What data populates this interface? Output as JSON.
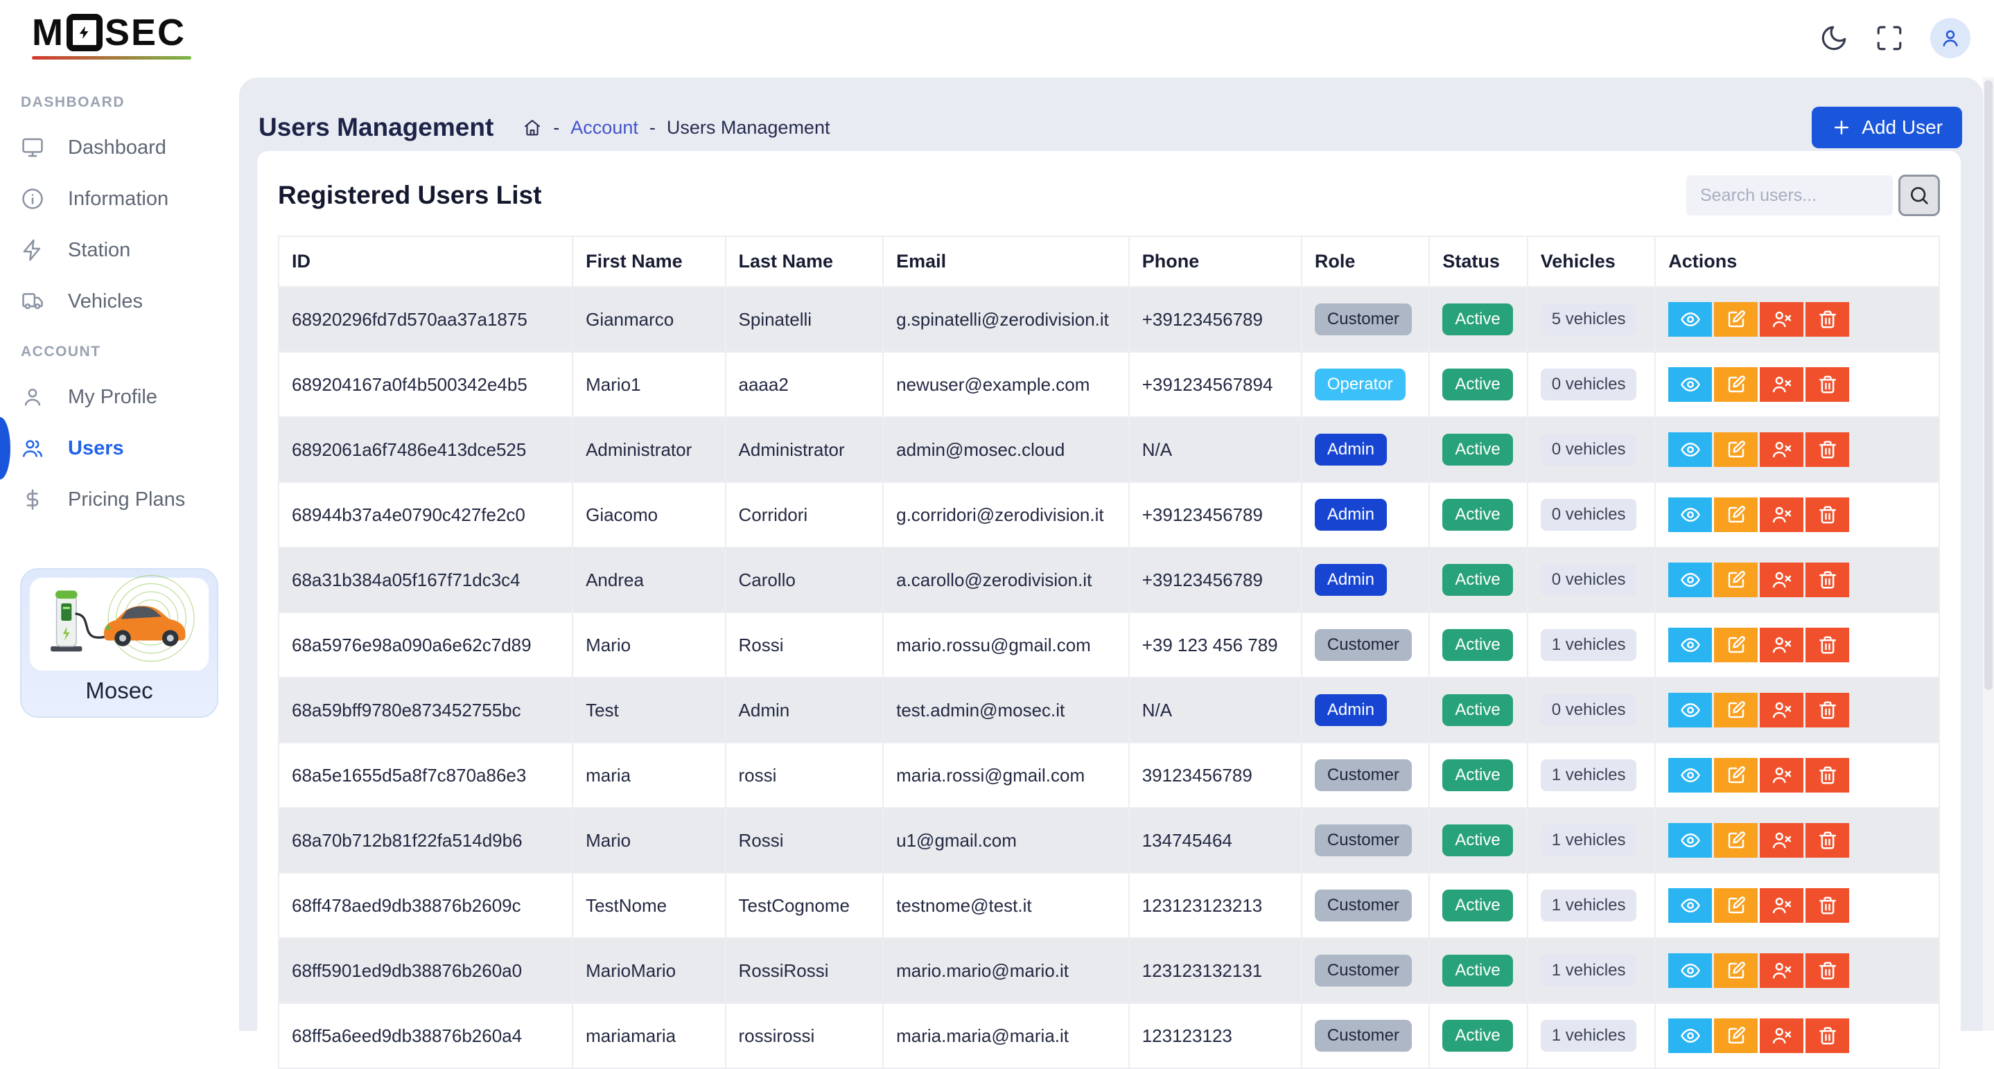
{
  "brand": {
    "logo_text_left": "M",
    "logo_text_right": "SEC",
    "bottom_card_label": "Mosec"
  },
  "topbar": {
    "buttons": [
      {
        "name": "dark-mode-toggle",
        "icon": "moon-icon"
      },
      {
        "name": "fullscreen-toggle",
        "icon": "maximize-icon"
      },
      {
        "name": "user-menu",
        "icon": "avatar-icon"
      }
    ]
  },
  "sidebar": {
    "sections": [
      {
        "label": "DASHBOARD",
        "items": [
          {
            "label": "Dashboard",
            "icon": "monitor-icon",
            "active": false
          },
          {
            "label": "Information",
            "icon": "info-icon",
            "active": false
          },
          {
            "label": "Station",
            "icon": "zap-icon",
            "active": false
          },
          {
            "label": "Vehicles",
            "icon": "truck-icon",
            "active": false
          }
        ]
      },
      {
        "label": "ACCOUNT",
        "items": [
          {
            "label": "My Profile",
            "icon": "user-icon",
            "active": false
          },
          {
            "label": "Users",
            "icon": "users-icon",
            "active": true
          },
          {
            "label": "Pricing Plans",
            "icon": "dollar-icon",
            "active": false
          }
        ]
      }
    ]
  },
  "page": {
    "title": "Users Management",
    "breadcrumb": {
      "separator": "-",
      "link": "Account",
      "current": "Users Management"
    },
    "add_user_label": "Add User"
  },
  "card": {
    "title": "Registered Users List",
    "search": {
      "placeholder": "Search users...",
      "value": ""
    }
  },
  "table": {
    "headers": [
      "ID",
      "First Name",
      "Last Name",
      "Email",
      "Phone",
      "Role",
      "Status",
      "Vehicles",
      "Actions"
    ],
    "row_actions": [
      {
        "name": "view",
        "icon": "eye-icon"
      },
      {
        "name": "edit",
        "icon": "edit-icon"
      },
      {
        "name": "remove-user",
        "icon": "user-x-icon"
      },
      {
        "name": "delete",
        "icon": "trash-icon"
      }
    ],
    "rows": [
      {
        "id": "68920296fd7d570aa37a1875",
        "first_name": "Gianmarco",
        "last_name": "Spinatelli",
        "email": "g.spinatelli@zerodivision.it",
        "phone": "+39123456789",
        "role": "Customer",
        "status": "Active",
        "vehicles": "5 vehicles"
      },
      {
        "id": "689204167a0f4b500342e4b5",
        "first_name": "Mario1",
        "last_name": "aaaa2",
        "email": "newuser@example.com",
        "phone": "+391234567894",
        "role": "Operator",
        "status": "Active",
        "vehicles": "0 vehicles"
      },
      {
        "id": "6892061a6f7486e413dce525",
        "first_name": "Administrator",
        "last_name": "Administrator",
        "email": "admin@mosec.cloud",
        "phone": "N/A",
        "role": "Admin",
        "status": "Active",
        "vehicles": "0 vehicles"
      },
      {
        "id": "68944b37a4e0790c427fe2c0",
        "first_name": "Giacomo",
        "last_name": "Corridori",
        "email": "g.corridori@zerodivision.it",
        "phone": "+39123456789",
        "role": "Admin",
        "status": "Active",
        "vehicles": "0 vehicles"
      },
      {
        "id": "68a31b384a05f167f71dc3c4",
        "first_name": "Andrea",
        "last_name": "Carollo",
        "email": "a.carollo@zerodivision.it",
        "phone": "+39123456789",
        "role": "Admin",
        "status": "Active",
        "vehicles": "0 vehicles"
      },
      {
        "id": "68a5976e98a090a6e62c7d89",
        "first_name": "Mario",
        "last_name": "Rossi",
        "email": "mario.rossu@gmail.com",
        "phone": "+39 123 456 789",
        "role": "Customer",
        "status": "Active",
        "vehicles": "1 vehicles"
      },
      {
        "id": "68a59bff9780e873452755bc",
        "first_name": "Test",
        "last_name": "Admin",
        "email": "test.admin@mosec.it",
        "phone": "N/A",
        "role": "Admin",
        "status": "Active",
        "vehicles": "0 vehicles"
      },
      {
        "id": "68a5e1655d5a8f7c870a86e3",
        "first_name": "maria",
        "last_name": "rossi",
        "email": "maria.rossi@gmail.com",
        "phone": "39123456789",
        "role": "Customer",
        "status": "Active",
        "vehicles": "1 vehicles"
      },
      {
        "id": "68a70b712b81f22fa514d9b6",
        "first_name": "Mario",
        "last_name": "Rossi",
        "email": "u1@gmail.com",
        "phone": "134745464",
        "role": "Customer",
        "status": "Active",
        "vehicles": "1 vehicles"
      },
      {
        "id": "68ff478aed9db38876b2609c",
        "first_name": "TestNome",
        "last_name": "TestCognome",
        "email": "testnome@test.it",
        "phone": "123123123213",
        "role": "Customer",
        "status": "Active",
        "vehicles": "1 vehicles"
      },
      {
        "id": "68ff5901ed9db38876b260a0",
        "first_name": "MarioMario",
        "last_name": "RossiRossi",
        "email": "mario.mario@mario.it",
        "phone": "123123132131",
        "role": "Customer",
        "status": "Active",
        "vehicles": "1 vehicles"
      },
      {
        "id": "68ff5a6eed9db38876b260a4",
        "first_name": "mariamaria",
        "last_name": "rossirossi",
        "email": "maria.maria@maria.it",
        "phone": "123123123",
        "role": "Customer",
        "status": "Active",
        "vehicles": "1 vehicles"
      }
    ]
  },
  "colors": {
    "primary": "#1a56db",
    "role_customer_bg": "#aeb7c6",
    "role_operator_bg": "#3cc0fa",
    "role_admin_bg": "#1745d1",
    "status_active_bg": "#28a27a",
    "vehicles_badge_bg": "#e4e6f1",
    "action_view_bg": "#2ab4f2",
    "action_edit_bg": "#f9a01e",
    "action_danger_bg": "#f0512c",
    "logo_underline_start": "#d23a2e",
    "logo_underline_end": "#7ab648"
  }
}
